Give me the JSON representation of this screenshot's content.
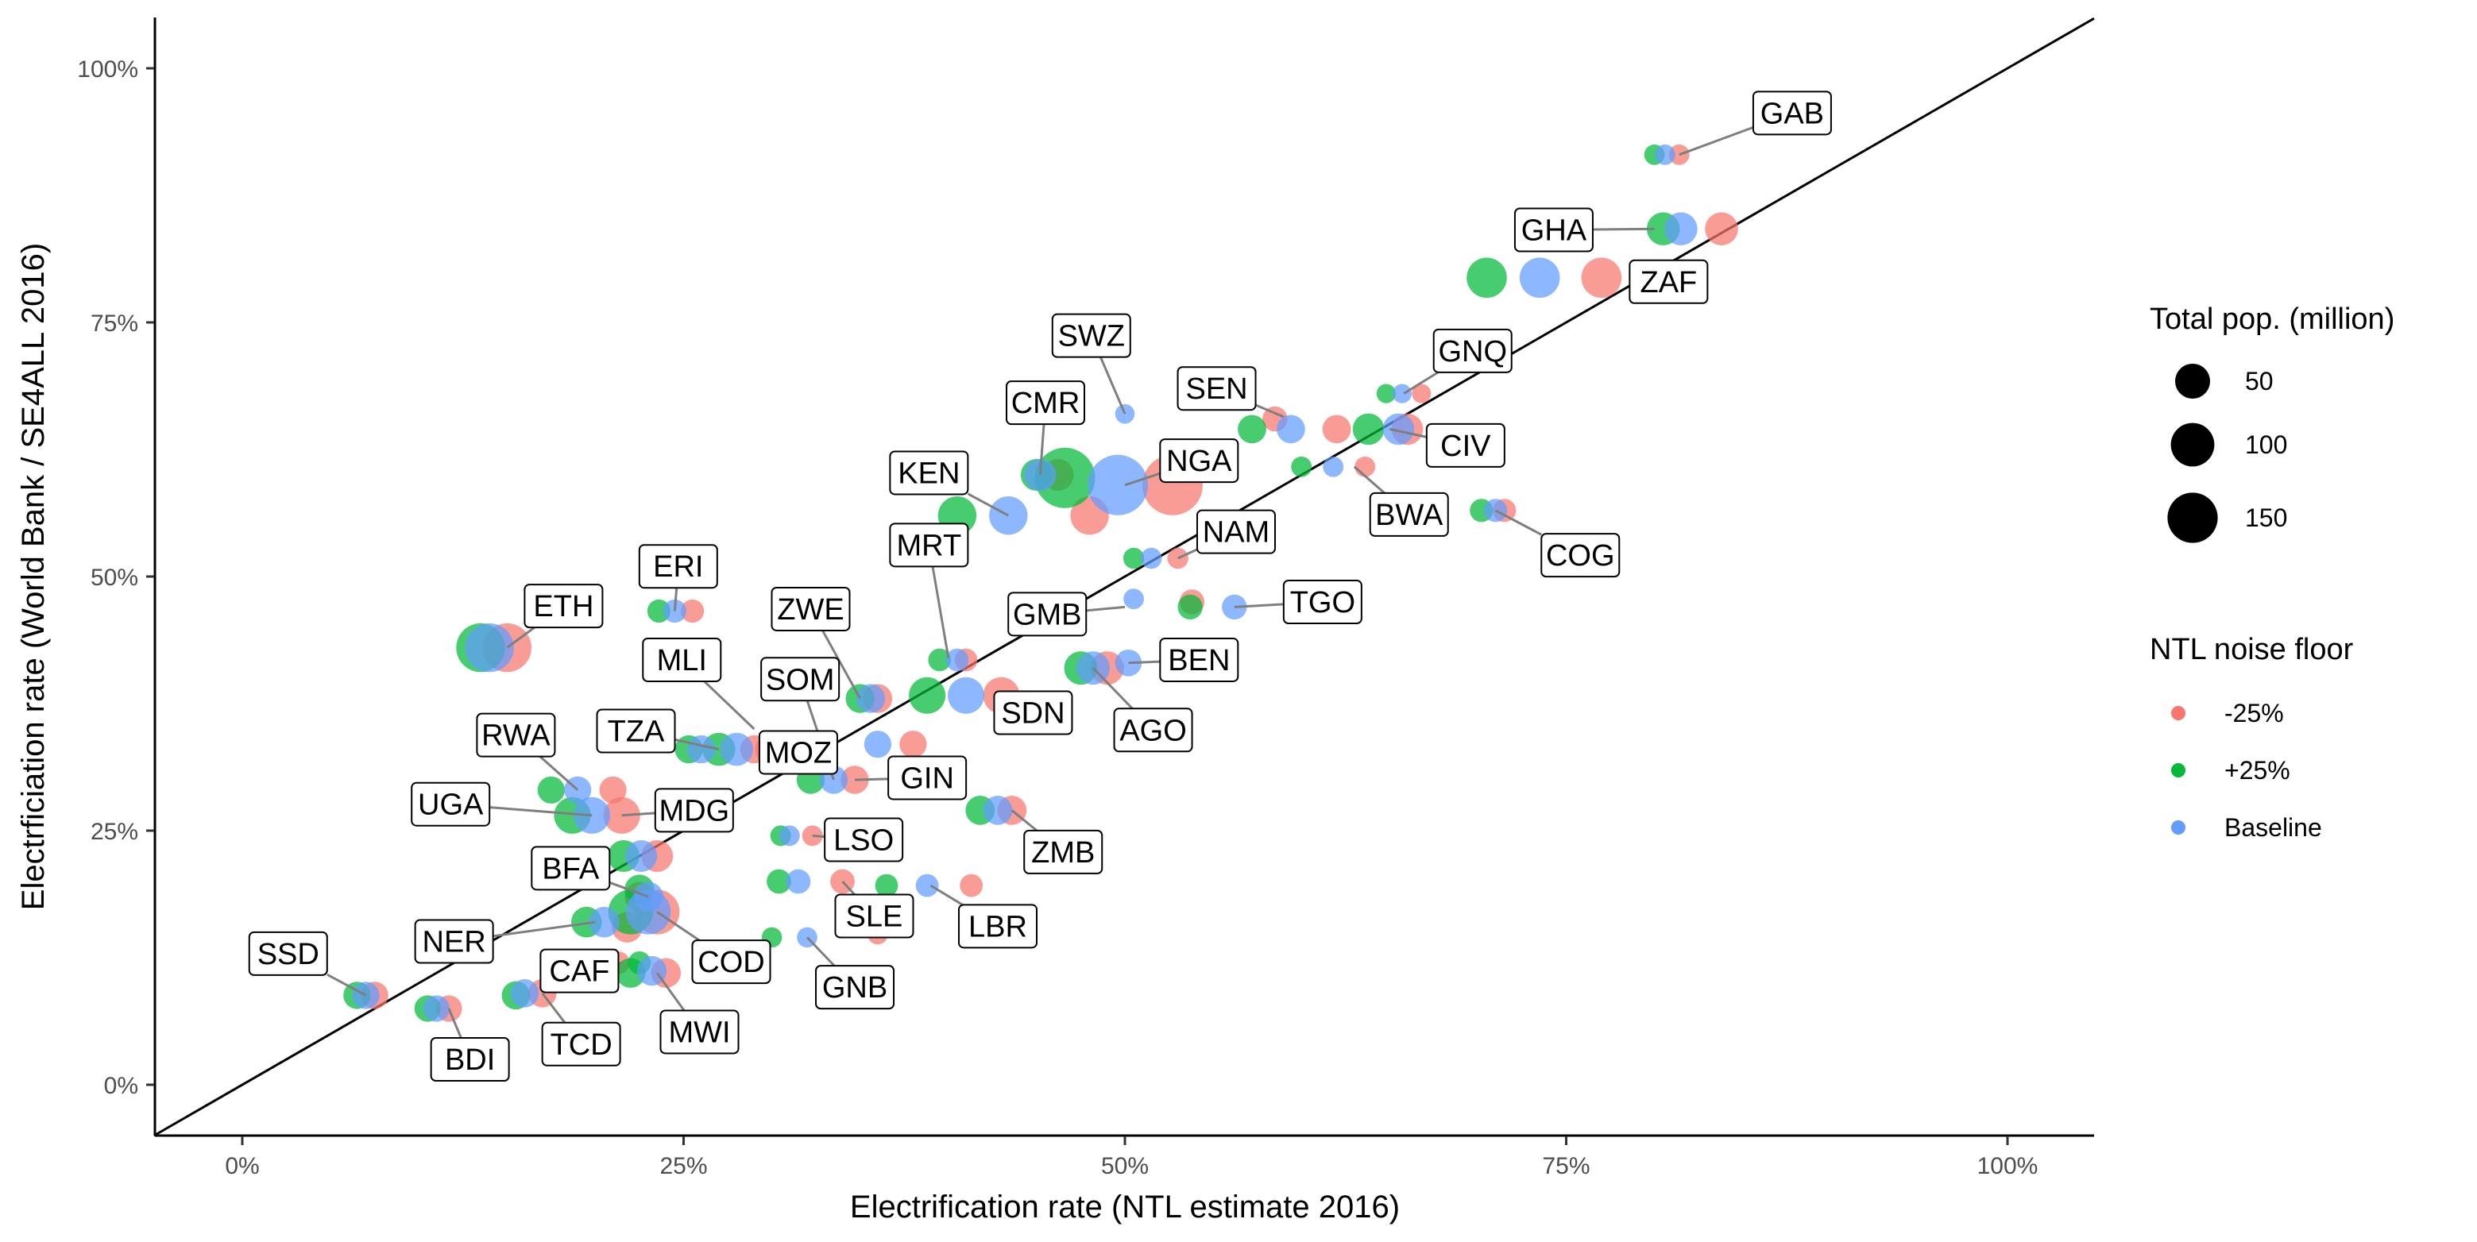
{
  "chart_data": {
    "type": "scatter",
    "xlabel": "Electrification rate (NTL estimate 2016)",
    "ylabel": "Electrficiation rate (World Bank / SE4ALL 2016)",
    "xlim": [
      -0.05,
      1.05
    ],
    "ylim": [
      -0.05,
      1.05
    ],
    "x_ticks": [
      0,
      0.25,
      0.5,
      0.75,
      1.0
    ],
    "x_tick_labels": [
      "0%",
      "25%",
      "50%",
      "75%",
      "100%"
    ],
    "y_ticks": [
      0,
      0.25,
      0.5,
      0.75,
      1.0
    ],
    "y_tick_labels": [
      "0%",
      "25%",
      "50%",
      "75%",
      "100%"
    ],
    "grid": false,
    "reference_line": "y = x",
    "legend_position": "right",
    "size_legend": {
      "title": "Total pop. (million)",
      "entries": [
        {
          "value": 50,
          "label": "50"
        },
        {
          "value": 100,
          "label": "100"
        },
        {
          "value": 150,
          "label": "150"
        }
      ]
    },
    "color_legend": {
      "title": "NTL noise floor",
      "entries": [
        {
          "name": "-25%",
          "label": "-25%",
          "color": "#F8766D"
        },
        {
          "name": "+25%",
          "label": "+25%",
          "color": "#00BA38"
        },
        {
          "name": "Baseline",
          "label": "Baseline",
          "color": "#619CFF"
        }
      ]
    },
    "series": [
      {
        "name": "-25%",
        "color": "#F8766D",
        "points": [
          {
            "x": 0.814,
            "y": 0.915,
            "pop": 2
          },
          {
            "x": 0.838,
            "y": 0.842,
            "pop": 28
          },
          {
            "x": 0.77,
            "y": 0.794,
            "pop": 56
          },
          {
            "x": 0.668,
            "y": 0.68,
            "pop": 1
          },
          {
            "x": 0.66,
            "y": 0.645,
            "pop": 23
          },
          {
            "x": 0.715,
            "y": 0.565,
            "pop": 5
          },
          {
            "x": 0.62,
            "y": 0.645,
            "pop": 15
          },
          {
            "x": 0.636,
            "y": 0.608,
            "pop": 2
          },
          {
            "x": 0.585,
            "y": 0.655,
            "pop": 8
          },
          {
            "x": 0.527,
            "y": 0.59,
            "pop": 186
          },
          {
            "x": 0.48,
            "y": 0.56,
            "pop": 48
          },
          {
            "x": 0.462,
            "y": 0.6,
            "pop": 24
          },
          {
            "x": 0.53,
            "y": 0.518,
            "pop": 2.5
          },
          {
            "x": 0.538,
            "y": 0.475,
            "pop": 7.6
          },
          {
            "x": 0.49,
            "y": 0.41,
            "pop": 29
          },
          {
            "x": 0.41,
            "y": 0.418,
            "pop": 4.3
          },
          {
            "x": 0.43,
            "y": 0.383,
            "pop": 40
          },
          {
            "x": 0.36,
            "y": 0.38,
            "pop": 16
          },
          {
            "x": 0.436,
            "y": 0.27,
            "pop": 16.6
          },
          {
            "x": 0.38,
            "y": 0.335,
            "pop": 12
          },
          {
            "x": 0.347,
            "y": 0.3,
            "pop": 14
          },
          {
            "x": 0.34,
            "y": 0.2,
            "pop": 7
          },
          {
            "x": 0.413,
            "y": 0.196,
            "pop": 4.6
          },
          {
            "x": 0.323,
            "y": 0.245,
            "pop": 2.2
          },
          {
            "x": 0.3,
            "y": 0.33,
            "pop": 28
          },
          {
            "x": 0.29,
            "y": 0.33,
            "pop": 14
          },
          {
            "x": 0.255,
            "y": 0.466,
            "pop": 5
          },
          {
            "x": 0.15,
            "y": 0.43,
            "pop": 102
          },
          {
            "x": 0.21,
            "y": 0.29,
            "pop": 12
          },
          {
            "x": 0.215,
            "y": 0.265,
            "pop": 41
          },
          {
            "x": 0.235,
            "y": 0.225,
            "pop": 24
          },
          {
            "x": 0.225,
            "y": 0.185,
            "pop": 18.6
          },
          {
            "x": 0.235,
            "y": 0.17,
            "pop": 79
          },
          {
            "x": 0.218,
            "y": 0.155,
            "pop": 20.7
          },
          {
            "x": 0.213,
            "y": 0.12,
            "pop": 4.6
          },
          {
            "x": 0.24,
            "y": 0.11,
            "pop": 18
          },
          {
            "x": 0.17,
            "y": 0.09,
            "pop": 14.5
          },
          {
            "x": 0.117,
            "y": 0.075,
            "pop": 10.5
          },
          {
            "x": 0.075,
            "y": 0.088,
            "pop": 12.2
          },
          {
            "x": 0.36,
            "y": 0.148,
            "pop": 1.8
          }
        ]
      },
      {
        "name": "+25%",
        "color": "#00BA38",
        "points": [
          {
            "x": 0.8,
            "y": 0.915,
            "pop": 2
          },
          {
            "x": 0.805,
            "y": 0.842,
            "pop": 28
          },
          {
            "x": 0.705,
            "y": 0.794,
            "pop": 56
          },
          {
            "x": 0.648,
            "y": 0.68,
            "pop": 1
          },
          {
            "x": 0.638,
            "y": 0.645,
            "pop": 23
          },
          {
            "x": 0.702,
            "y": 0.565,
            "pop": 5
          },
          {
            "x": 0.572,
            "y": 0.645,
            "pop": 15
          },
          {
            "x": 0.6,
            "y": 0.608,
            "pop": 2
          },
          {
            "x": 0.466,
            "y": 0.597,
            "pop": 186
          },
          {
            "x": 0.45,
            "y": 0.6,
            "pop": 24
          },
          {
            "x": 0.405,
            "y": 0.56,
            "pop": 48
          },
          {
            "x": 0.505,
            "y": 0.518,
            "pop": 2.5
          },
          {
            "x": 0.537,
            "y": 0.47,
            "pop": 7.6
          },
          {
            "x": 0.475,
            "y": 0.41,
            "pop": 29
          },
          {
            "x": 0.395,
            "y": 0.418,
            "pop": 4.3
          },
          {
            "x": 0.388,
            "y": 0.383,
            "pop": 40
          },
          {
            "x": 0.35,
            "y": 0.38,
            "pop": 16
          },
          {
            "x": 0.418,
            "y": 0.27,
            "pop": 16.6
          },
          {
            "x": 0.322,
            "y": 0.3,
            "pop": 14
          },
          {
            "x": 0.304,
            "y": 0.2,
            "pop": 7
          },
          {
            "x": 0.365,
            "y": 0.196,
            "pop": 4.6
          },
          {
            "x": 0.305,
            "y": 0.245,
            "pop": 2.2
          },
          {
            "x": 0.3,
            "y": 0.145,
            "pop": 1.8
          },
          {
            "x": 0.27,
            "y": 0.33,
            "pop": 28
          },
          {
            "x": 0.253,
            "y": 0.33,
            "pop": 14
          },
          {
            "x": 0.236,
            "y": 0.466,
            "pop": 5
          },
          {
            "x": 0.135,
            "y": 0.43,
            "pop": 102
          },
          {
            "x": 0.175,
            "y": 0.29,
            "pop": 12
          },
          {
            "x": 0.187,
            "y": 0.265,
            "pop": 41
          },
          {
            "x": 0.216,
            "y": 0.225,
            "pop": 24
          },
          {
            "x": 0.225,
            "y": 0.192,
            "pop": 18.6
          },
          {
            "x": 0.22,
            "y": 0.17,
            "pop": 79
          },
          {
            "x": 0.195,
            "y": 0.16,
            "pop": 20.7
          },
          {
            "x": 0.225,
            "y": 0.12,
            "pop": 4.6
          },
          {
            "x": 0.22,
            "y": 0.11,
            "pop": 18
          },
          {
            "x": 0.155,
            "y": 0.088,
            "pop": 14.5
          },
          {
            "x": 0.105,
            "y": 0.075,
            "pop": 10.5
          },
          {
            "x": 0.065,
            "y": 0.088,
            "pop": 12.2
          }
        ]
      },
      {
        "name": "Baseline",
        "color": "#619CFF",
        "points": [
          {
            "x": 0.806,
            "y": 0.915,
            "pop": 2
          },
          {
            "x": 0.815,
            "y": 0.842,
            "pop": 28
          },
          {
            "x": 0.735,
            "y": 0.794,
            "pop": 56
          },
          {
            "x": 0.657,
            "y": 0.68,
            "pop": 1
          },
          {
            "x": 0.655,
            "y": 0.645,
            "pop": 23
          },
          {
            "x": 0.71,
            "y": 0.565,
            "pop": 5
          },
          {
            "x": 0.594,
            "y": 0.645,
            "pop": 15
          },
          {
            "x": 0.618,
            "y": 0.608,
            "pop": 2
          },
          {
            "x": 0.5,
            "y": 0.66,
            "pop": 1.3
          },
          {
            "x": 0.496,
            "y": 0.59,
            "pop": 186
          },
          {
            "x": 0.434,
            "y": 0.56,
            "pop": 48
          },
          {
            "x": 0.452,
            "y": 0.6,
            "pop": 24
          },
          {
            "x": 0.515,
            "y": 0.518,
            "pop": 2.5
          },
          {
            "x": 0.562,
            "y": 0.47,
            "pop": 7.6
          },
          {
            "x": 0.502,
            "y": 0.415,
            "pop": 11
          },
          {
            "x": 0.482,
            "y": 0.41,
            "pop": 29
          },
          {
            "x": 0.505,
            "y": 0.478,
            "pop": 2
          },
          {
            "x": 0.405,
            "y": 0.418,
            "pop": 4.3
          },
          {
            "x": 0.41,
            "y": 0.383,
            "pop": 40
          },
          {
            "x": 0.356,
            "y": 0.38,
            "pop": 16
          },
          {
            "x": 0.428,
            "y": 0.27,
            "pop": 16.6
          },
          {
            "x": 0.36,
            "y": 0.335,
            "pop": 12
          },
          {
            "x": 0.335,
            "y": 0.3,
            "pop": 14
          },
          {
            "x": 0.315,
            "y": 0.2,
            "pop": 7
          },
          {
            "x": 0.388,
            "y": 0.196,
            "pop": 4.6
          },
          {
            "x": 0.32,
            "y": 0.145,
            "pop": 1.8
          },
          {
            "x": 0.31,
            "y": 0.245,
            "pop": 2.2
          },
          {
            "x": 0.28,
            "y": 0.33,
            "pop": 28
          },
          {
            "x": 0.26,
            "y": 0.33,
            "pop": 14
          },
          {
            "x": 0.245,
            "y": 0.466,
            "pop": 5
          },
          {
            "x": 0.14,
            "y": 0.43,
            "pop": 102
          },
          {
            "x": 0.19,
            "y": 0.29,
            "pop": 12
          },
          {
            "x": 0.198,
            "y": 0.265,
            "pop": 41
          },
          {
            "x": 0.226,
            "y": 0.225,
            "pop": 24
          },
          {
            "x": 0.23,
            "y": 0.185,
            "pop": 18.6
          },
          {
            "x": 0.23,
            "y": 0.17,
            "pop": 79
          },
          {
            "x": 0.205,
            "y": 0.16,
            "pop": 20.7
          },
          {
            "x": 0.232,
            "y": 0.112,
            "pop": 18
          },
          {
            "x": 0.16,
            "y": 0.09,
            "pop": 14.5
          },
          {
            "x": 0.11,
            "y": 0.075,
            "pop": 10.5
          },
          {
            "x": 0.07,
            "y": 0.088,
            "pop": 12.2
          }
        ]
      }
    ],
    "annotations": [
      {
        "label": "GAB",
        "x": 0.878,
        "y": 0.956,
        "point_x": 0.814,
        "point_y": 0.915
      },
      {
        "label": "GHA",
        "x": 0.743,
        "y": 0.841,
        "point_x": 0.8,
        "point_y": 0.842
      },
      {
        "label": "ZAF",
        "x": 0.808,
        "y": 0.79,
        "point_x": 0.79,
        "point_y": 0.794
      },
      {
        "label": "GNQ",
        "x": 0.697,
        "y": 0.722,
        "point_x": 0.658,
        "point_y": 0.68
      },
      {
        "label": "SEN",
        "x": 0.552,
        "y": 0.685,
        "point_x": 0.59,
        "point_y": 0.657
      },
      {
        "label": "CIV",
        "x": 0.693,
        "y": 0.629,
        "point_x": 0.65,
        "point_y": 0.645
      },
      {
        "label": "SWZ",
        "x": 0.481,
        "y": 0.737,
        "point_x": 0.5,
        "point_y": 0.66
      },
      {
        "label": "CMR",
        "x": 0.455,
        "y": 0.671,
        "point_x": 0.452,
        "point_y": 0.6
      },
      {
        "label": "NGA",
        "x": 0.542,
        "y": 0.614,
        "point_x": 0.5,
        "point_y": 0.59
      },
      {
        "label": "BWA",
        "x": 0.661,
        "y": 0.561,
        "point_x": 0.63,
        "point_y": 0.608
      },
      {
        "label": "KEN",
        "x": 0.389,
        "y": 0.602,
        "point_x": 0.434,
        "point_y": 0.56
      },
      {
        "label": "COG",
        "x": 0.758,
        "y": 0.521,
        "point_x": 0.71,
        "point_y": 0.565
      },
      {
        "label": "NAM",
        "x": 0.563,
        "y": 0.544,
        "point_x": 0.53,
        "point_y": 0.518
      },
      {
        "label": "MRT",
        "x": 0.389,
        "y": 0.531,
        "point_x": 0.4,
        "point_y": 0.42
      },
      {
        "label": "ERI",
        "x": 0.247,
        "y": 0.51,
        "point_x": 0.245,
        "point_y": 0.466
      },
      {
        "label": "TGO",
        "x": 0.612,
        "y": 0.475,
        "point_x": 0.562,
        "point_y": 0.47
      },
      {
        "label": "ETH",
        "x": 0.182,
        "y": 0.471,
        "point_x": 0.15,
        "point_y": 0.43
      },
      {
        "label": "ZWE",
        "x": 0.322,
        "y": 0.468,
        "point_x": 0.35,
        "point_y": 0.38
      },
      {
        "label": "GMB",
        "x": 0.456,
        "y": 0.463,
        "point_x": 0.5,
        "point_y": 0.47
      },
      {
        "label": "BEN",
        "x": 0.542,
        "y": 0.418,
        "point_x": 0.502,
        "point_y": 0.415
      },
      {
        "label": "MLI",
        "x": 0.249,
        "y": 0.418,
        "point_x": 0.29,
        "point_y": 0.35
      },
      {
        "label": "SOM",
        "x": 0.316,
        "y": 0.399,
        "point_x": 0.335,
        "point_y": 0.3
      },
      {
        "label": "SDN",
        "x": 0.448,
        "y": 0.366,
        "point_x": 0.43,
        "point_y": 0.383
      },
      {
        "label": "AGO",
        "x": 0.516,
        "y": 0.349,
        "point_x": 0.482,
        "point_y": 0.41
      },
      {
        "label": "RWA",
        "x": 0.155,
        "y": 0.344,
        "point_x": 0.19,
        "point_y": 0.29
      },
      {
        "label": "TZA",
        "x": 0.223,
        "y": 0.348,
        "point_x": 0.27,
        "point_y": 0.33
      },
      {
        "label": "MOZ",
        "x": 0.315,
        "y": 0.327,
        "point_x": 0.3,
        "point_y": 0.33
      },
      {
        "label": "GIN",
        "x": 0.388,
        "y": 0.302,
        "point_x": 0.347,
        "point_y": 0.3
      },
      {
        "label": "UGA",
        "x": 0.118,
        "y": 0.276,
        "point_x": 0.198,
        "point_y": 0.265
      },
      {
        "label": "MDG",
        "x": 0.256,
        "y": 0.27,
        "point_x": 0.215,
        "point_y": 0.265
      },
      {
        "label": "LSO",
        "x": 0.352,
        "y": 0.241,
        "point_x": 0.323,
        "point_y": 0.245
      },
      {
        "label": "ZMB",
        "x": 0.465,
        "y": 0.229,
        "point_x": 0.436,
        "point_y": 0.27
      },
      {
        "label": "BFA",
        "x": 0.186,
        "y": 0.213,
        "point_x": 0.23,
        "point_y": 0.185
      },
      {
        "label": "SLE",
        "x": 0.358,
        "y": 0.166,
        "point_x": 0.34,
        "point_y": 0.2
      },
      {
        "label": "LBR",
        "x": 0.428,
        "y": 0.156,
        "point_x": 0.39,
        "point_y": 0.196
      },
      {
        "label": "NER",
        "x": 0.12,
        "y": 0.141,
        "point_x": 0.2,
        "point_y": 0.16
      },
      {
        "label": "COD",
        "x": 0.277,
        "y": 0.121,
        "point_x": 0.235,
        "point_y": 0.17
      },
      {
        "label": "SSD",
        "x": 0.026,
        "y": 0.129,
        "point_x": 0.07,
        "point_y": 0.088
      },
      {
        "label": "CAF",
        "x": 0.191,
        "y": 0.112,
        "point_x": 0.215,
        "point_y": 0.12
      },
      {
        "label": "GNB",
        "x": 0.347,
        "y": 0.096,
        "point_x": 0.32,
        "point_y": 0.145
      },
      {
        "label": "MWI",
        "x": 0.259,
        "y": 0.052,
        "point_x": 0.235,
        "point_y": 0.11
      },
      {
        "label": "TCD",
        "x": 0.192,
        "y": 0.04,
        "point_x": 0.17,
        "point_y": 0.09
      },
      {
        "label": "BDI",
        "x": 0.129,
        "y": 0.025,
        "point_x": 0.117,
        "point_y": 0.075
      }
    ]
  }
}
